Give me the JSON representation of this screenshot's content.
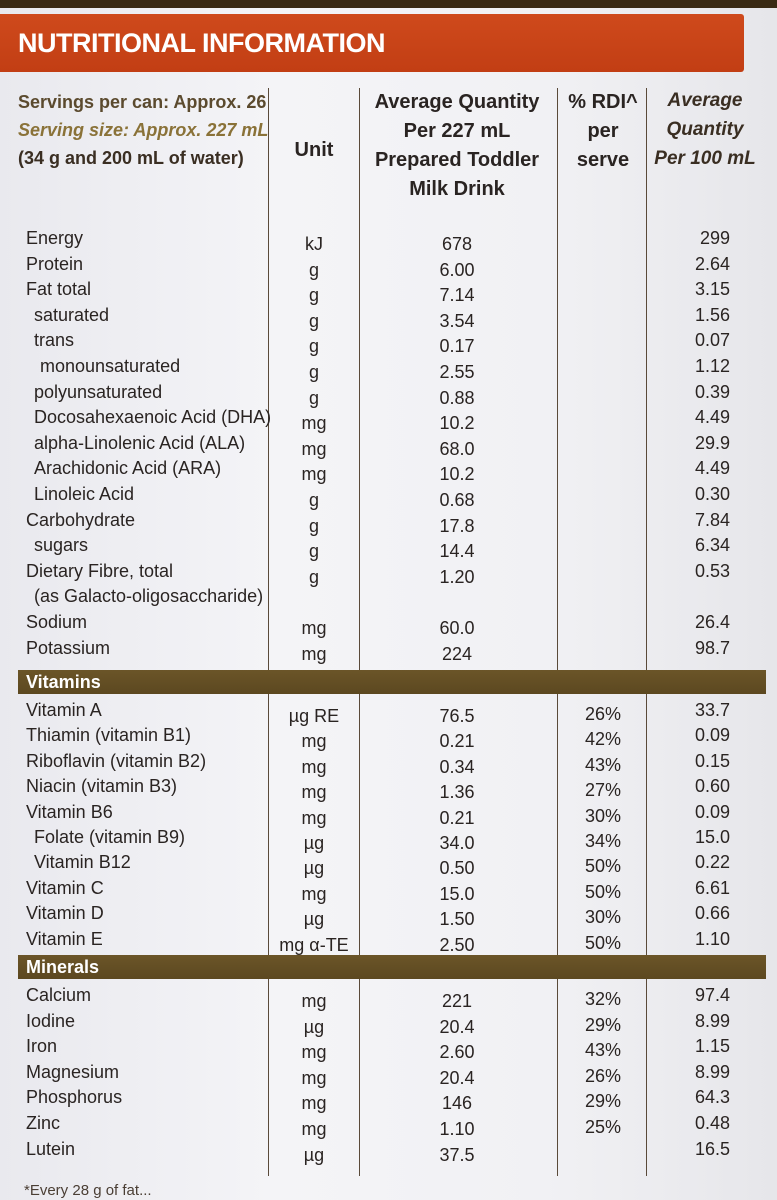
{
  "title": "NUTRITIONAL INFORMATION",
  "header": {
    "servings": "Servings per can: Approx. 26",
    "serving_size": "Serving size: Approx. 227 mL",
    "serving_detail": "(34 g and 200 mL of water)",
    "unit": "Unit",
    "avg_line1": "Average Quantity",
    "avg_line2": "Per 227 mL",
    "avg_line3": "Prepared Toddler",
    "avg_line4": "Milk Drink",
    "rdi_line1": "% RDI^",
    "rdi_line2": "per",
    "rdi_line3": "serve",
    "per100_line1": "Average",
    "per100_line2": "Quantity",
    "per100_line3": "Per 100 mL"
  },
  "nutrients": [
    {
      "name": "Energy",
      "unit": "kJ",
      "avg": "678",
      "rdi": "",
      "per100": "299"
    },
    {
      "name": "Protein",
      "unit": "g",
      "avg": "6.00",
      "rdi": "",
      "per100": "2.64"
    },
    {
      "name": "Fat total",
      "unit": "g",
      "avg": "7.14",
      "rdi": "",
      "per100": "3.15"
    },
    {
      "name": "saturated",
      "unit": "g",
      "avg": "3.54",
      "rdi": "",
      "per100": "1.56"
    },
    {
      "name": "trans",
      "unit": "g",
      "avg": "0.17",
      "rdi": "",
      "per100": "0.07"
    },
    {
      "name": "monounsaturated",
      "unit": "g",
      "avg": "2.55",
      "rdi": "",
      "per100": "1.12"
    },
    {
      "name": "polyunsaturated",
      "unit": "g",
      "avg": "0.88",
      "rdi": "",
      "per100": "0.39"
    },
    {
      "name": "Docosahexaenoic Acid (DHA)",
      "unit": "mg",
      "avg": "10.2",
      "rdi": "",
      "per100": "4.49"
    },
    {
      "name": "alpha-Linolenic Acid (ALA)",
      "unit": "mg",
      "avg": "68.0",
      "rdi": "",
      "per100": "29.9"
    },
    {
      "name": "Arachidonic Acid (ARA)",
      "unit": "mg",
      "avg": "10.2",
      "rdi": "",
      "per100": "4.49"
    },
    {
      "name": "Linoleic Acid",
      "unit": "g",
      "avg": "0.68",
      "rdi": "",
      "per100": "0.30"
    },
    {
      "name": "Carbohydrate",
      "unit": "g",
      "avg": "17.8",
      "rdi": "",
      "per100": "7.84"
    },
    {
      "name": "sugars",
      "unit": "g",
      "avg": "14.4",
      "rdi": "",
      "per100": "6.34"
    },
    {
      "name": "Dietary Fibre, total",
      "unit": "g",
      "avg": "1.20",
      "rdi": "",
      "per100": "0.53"
    },
    {
      "name": "(as Galacto-oligosaccharide)",
      "unit": "",
      "avg": "",
      "rdi": "",
      "per100": ""
    },
    {
      "name": "Sodium",
      "unit": "mg",
      "avg": "60.0",
      "rdi": "",
      "per100": "26.4"
    },
    {
      "name": "Potassium",
      "unit": "mg",
      "avg": "224",
      "rdi": "",
      "per100": "98.7"
    }
  ],
  "vitamins_label": "Vitamins",
  "vitamins": [
    {
      "name": "Vitamin A",
      "unit": "µg RE",
      "avg": "76.5",
      "rdi": "26%",
      "per100": "33.7"
    },
    {
      "name": "Thiamin (vitamin B1)",
      "unit": "mg",
      "avg": "0.21",
      "rdi": "42%",
      "per100": "0.09"
    },
    {
      "name": "Riboflavin (vitamin B2)",
      "unit": "mg",
      "avg": "0.34",
      "rdi": "43%",
      "per100": "0.15"
    },
    {
      "name": "Niacin (vitamin B3)",
      "unit": "mg",
      "avg": "1.36",
      "rdi": "27%",
      "per100": "0.60"
    },
    {
      "name": "Vitamin B6",
      "unit": "mg",
      "avg": "0.21",
      "rdi": "30%",
      "per100": "0.09"
    },
    {
      "name": "Folate (vitamin B9)",
      "unit": "µg",
      "avg": "34.0",
      "rdi": "34%",
      "per100": "15.0"
    },
    {
      "name": "Vitamin B12",
      "unit": "µg",
      "avg": "0.50",
      "rdi": "50%",
      "per100": "0.22"
    },
    {
      "name": "Vitamin C",
      "unit": "mg",
      "avg": "15.0",
      "rdi": "50%",
      "per100": "6.61"
    },
    {
      "name": "Vitamin D",
      "unit": "µg",
      "avg": "1.50",
      "rdi": "30%",
      "per100": "0.66"
    },
    {
      "name": "Vitamin E",
      "unit": "mg α-TE",
      "avg": "2.50",
      "rdi": "50%",
      "per100": "1.10"
    }
  ],
  "minerals_label": "Minerals",
  "minerals": [
    {
      "name": "Calcium",
      "unit": "mg",
      "avg": "221",
      "rdi": "32%",
      "per100": "97.4"
    },
    {
      "name": "Iodine",
      "unit": "µg",
      "avg": "20.4",
      "rdi": "29%",
      "per100": "8.99"
    },
    {
      "name": "Iron",
      "unit": "mg",
      "avg": "2.60",
      "rdi": "43%",
      "per100": "1.15"
    },
    {
      "name": "Magnesium",
      "unit": "mg",
      "avg": "20.4",
      "rdi": "26%",
      "per100": "8.99"
    },
    {
      "name": "Phosphorus",
      "unit": "mg",
      "avg": "146",
      "rdi": "29%",
      "per100": "64.3"
    },
    {
      "name": "Zinc",
      "unit": "mg",
      "avg": "1.10",
      "rdi": "25%",
      "per100": "0.48"
    },
    {
      "name": "Lutein",
      "unit": "µg",
      "avg": "37.5",
      "rdi": "",
      "per100": "16.5"
    }
  ],
  "footnote": "*Every 28 g of fat..."
}
